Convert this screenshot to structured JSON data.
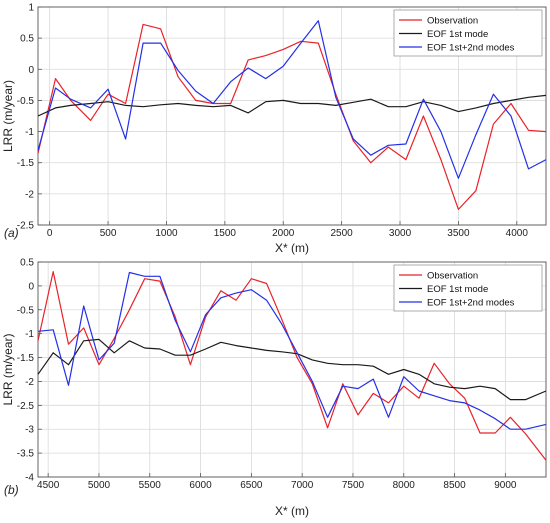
{
  "colors": {
    "observation": "#e8232a",
    "eof1": "#1a1a1a",
    "eof12": "#2430e6",
    "grid": "#d9d9d9",
    "axis": "#555555"
  },
  "chart_data": [
    {
      "type": "line",
      "panel_label": "(a)",
      "xlabel": "X* (m)",
      "ylabel": "LRR (m/year)",
      "xlim": [
        -100,
        4250
      ],
      "ylim": [
        -2.5,
        1
      ],
      "x_ticks": [
        0,
        500,
        1000,
        1500,
        2000,
        2500,
        3000,
        3500,
        4000
      ],
      "y_ticks": [
        -2.5,
        -2,
        -1.5,
        -1,
        -0.5,
        0,
        0.5,
        1
      ],
      "grid": true,
      "legend_position": "top-right",
      "series": [
        {
          "name": "Observation",
          "color_key": "observation",
          "x": [
            -100,
            50,
            180,
            350,
            500,
            650,
            800,
            950,
            1100,
            1250,
            1400,
            1550,
            1700,
            1850,
            2000,
            2150,
            2300,
            2450,
            2600,
            2750,
            2900,
            3050,
            3200,
            3350,
            3500,
            3650,
            3800,
            3950,
            4100,
            4250
          ],
          "values": [
            -1.35,
            -0.15,
            -0.5,
            -0.82,
            -0.4,
            -0.55,
            0.72,
            0.65,
            -0.12,
            -0.5,
            -0.55,
            -0.55,
            0.15,
            0.22,
            0.32,
            0.45,
            0.42,
            -0.4,
            -1.15,
            -1.5,
            -1.25,
            -1.45,
            -0.75,
            -1.45,
            -2.25,
            -1.95,
            -0.88,
            -0.55,
            -0.98,
            -1.0
          ]
        },
        {
          "name": "EOF 1st mode",
          "color_key": "eof1",
          "x": [
            -100,
            50,
            180,
            350,
            500,
            650,
            800,
            950,
            1100,
            1250,
            1400,
            1550,
            1700,
            1850,
            2000,
            2150,
            2300,
            2450,
            2600,
            2750,
            2900,
            3050,
            3200,
            3350,
            3500,
            3650,
            3800,
            3950,
            4100,
            4250
          ],
          "values": [
            -0.75,
            -0.62,
            -0.58,
            -0.55,
            -0.52,
            -0.58,
            -0.6,
            -0.57,
            -0.55,
            -0.58,
            -0.6,
            -0.58,
            -0.7,
            -0.52,
            -0.5,
            -0.55,
            -0.55,
            -0.58,
            -0.53,
            -0.48,
            -0.6,
            -0.6,
            -0.52,
            -0.58,
            -0.68,
            -0.62,
            -0.55,
            -0.5,
            -0.45,
            -0.42
          ]
        },
        {
          "name": "EOF 1st+2nd modes",
          "color_key": "eof12",
          "x": [
            -100,
            50,
            180,
            350,
            500,
            650,
            800,
            950,
            1100,
            1250,
            1400,
            1550,
            1700,
            1850,
            2000,
            2150,
            2300,
            2450,
            2600,
            2750,
            2900,
            3050,
            3200,
            3350,
            3500,
            3650,
            3800,
            3950,
            4100,
            4250
          ],
          "values": [
            -1.3,
            -0.3,
            -0.48,
            -0.62,
            -0.32,
            -1.12,
            0.42,
            0.42,
            -0.02,
            -0.35,
            -0.55,
            -0.2,
            0.02,
            -0.15,
            0.05,
            0.42,
            0.78,
            -0.45,
            -1.12,
            -1.38,
            -1.22,
            -1.2,
            -0.48,
            -1.0,
            -1.75,
            -1.05,
            -0.4,
            -0.75,
            -1.6,
            -1.45
          ]
        }
      ]
    },
    {
      "type": "line",
      "panel_label": "(b)",
      "xlabel": "X* (m)",
      "ylabel": "LRR (m/year)",
      "xlim": [
        4400,
        9400
      ],
      "ylim": [
        -4,
        0.5
      ],
      "x_ticks": [
        4500,
        5000,
        5500,
        6000,
        6500,
        7000,
        7500,
        8000,
        8500,
        9000
      ],
      "y_ticks": [
        -4,
        -3.5,
        -3,
        -2.5,
        -2,
        -1.5,
        -1,
        -0.5,
        0,
        0.5
      ],
      "grid": true,
      "legend_position": "top-right",
      "series": [
        {
          "name": "Observation",
          "color_key": "observation",
          "x": [
            4400,
            4550,
            4700,
            4850,
            5000,
            5150,
            5300,
            5450,
            5600,
            5750,
            5900,
            6050,
            6200,
            6350,
            6500,
            6650,
            6800,
            6950,
            7100,
            7250,
            7400,
            7550,
            7700,
            7850,
            8000,
            8150,
            8300,
            8450,
            8600,
            8750,
            8900,
            9050,
            9200,
            9400
          ],
          "values": [
            -1.15,
            0.3,
            -1.22,
            -0.88,
            -1.65,
            -1.1,
            -0.5,
            0.15,
            0.1,
            -0.65,
            -1.65,
            -0.65,
            -0.1,
            -0.3,
            0.15,
            0.05,
            -0.7,
            -1.5,
            -2.05,
            -2.97,
            -2.05,
            -2.7,
            -2.25,
            -2.45,
            -2.1,
            -2.35,
            -1.62,
            -2.05,
            -2.35,
            -3.08,
            -3.08,
            -2.75,
            -3.1,
            -3.65
          ]
        },
        {
          "name": "EOF 1st mode",
          "color_key": "eof1",
          "x": [
            4400,
            4550,
            4700,
            4850,
            5000,
            5150,
            5300,
            5450,
            5600,
            5750,
            5900,
            6050,
            6200,
            6350,
            6500,
            6650,
            6800,
            6950,
            7100,
            7250,
            7400,
            7550,
            7700,
            7850,
            8000,
            8150,
            8300,
            8450,
            8600,
            8750,
            8900,
            9050,
            9200,
            9400
          ],
          "values": [
            -1.85,
            -1.4,
            -1.65,
            -1.15,
            -1.12,
            -1.4,
            -1.15,
            -1.3,
            -1.32,
            -1.45,
            -1.45,
            -1.32,
            -1.18,
            -1.25,
            -1.3,
            -1.35,
            -1.38,
            -1.42,
            -1.55,
            -1.62,
            -1.65,
            -1.65,
            -1.68,
            -1.85,
            -1.75,
            -1.85,
            -2.05,
            -2.12,
            -2.15,
            -2.1,
            -2.15,
            -2.38,
            -2.38,
            -2.2
          ]
        },
        {
          "name": "EOF 1st+2nd modes",
          "color_key": "eof12",
          "x": [
            4400,
            4550,
            4700,
            4850,
            5000,
            5150,
            5300,
            5450,
            5600,
            5750,
            5900,
            6050,
            6200,
            6350,
            6500,
            6650,
            6800,
            6950,
            7100,
            7250,
            7400,
            7550,
            7700,
            7850,
            8000,
            8150,
            8300,
            8450,
            8600,
            8750,
            8900,
            9050,
            9200,
            9400
          ],
          "values": [
            -0.95,
            -0.92,
            -2.08,
            -0.42,
            -1.55,
            -1.2,
            0.28,
            0.2,
            0.2,
            -0.72,
            -1.38,
            -0.6,
            -0.25,
            -0.15,
            -0.08,
            -0.3,
            -0.8,
            -1.4,
            -2.0,
            -2.75,
            -2.1,
            -2.15,
            -1.95,
            -2.75,
            -1.9,
            -2.2,
            -2.3,
            -2.4,
            -2.45,
            -2.6,
            -2.78,
            -3.0,
            -3.0,
            -2.9
          ]
        }
      ]
    }
  ]
}
